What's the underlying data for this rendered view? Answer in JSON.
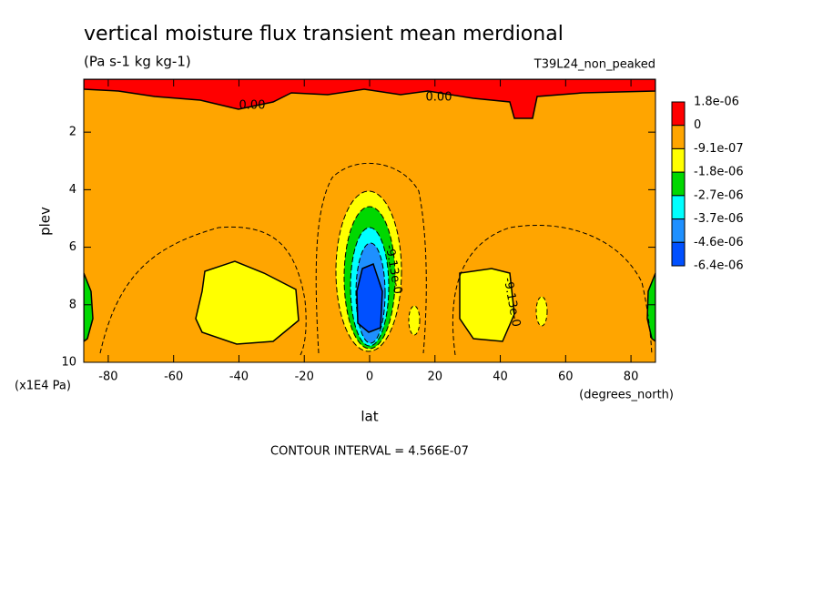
{
  "chart_data": {
    "type": "contour",
    "title": "vertical moisture flux transient mean merdional",
    "subtitle": "(Pa s-1 kg kg-1)",
    "dataset": "T39L24_non_peaked",
    "x_label": "lat",
    "x_units": "(degrees_north)",
    "y_label": "plev",
    "y_units": "(x1E4 Pa)",
    "footer": "CONTOUR INTERVAL = 4.566E-07",
    "xlim": [
      -87.5,
      87.5
    ],
    "ylim": [
      10,
      0.16
    ],
    "xticks": [
      -80,
      -60,
      -40,
      -20,
      0,
      20,
      40,
      60,
      80
    ],
    "yticks": [
      2,
      4,
      6,
      8,
      10
    ],
    "annotations": [
      "0.00",
      "0.00",
      "-9.13e-0",
      "-9.13e-0"
    ],
    "colorbar": {
      "levels": [
        {
          "value": 1.8e-06,
          "label": "1.8e-06"
        },
        0,
        {
          "value": -9.1e-07,
          "label": "-9.1e-07"
        },
        {
          "value": -1.8e-06,
          "label": "-1.8e-06"
        },
        {
          "value": -2.7e-06,
          "label": "-2.7e-06"
        },
        {
          "value": -3.7e-06,
          "label": "-3.7e-06"
        },
        {
          "value": -4.6e-06,
          "label": "-4.6e-06"
        },
        {
          "value": -6.4e-06,
          "label": "-6.4e-06"
        }
      ],
      "colors": [
        "#ff0000",
        "#ffa500",
        "#ffff00",
        "#00d800",
        "#00ffff",
        "#1e90ff",
        "#0050ff"
      ]
    }
  }
}
